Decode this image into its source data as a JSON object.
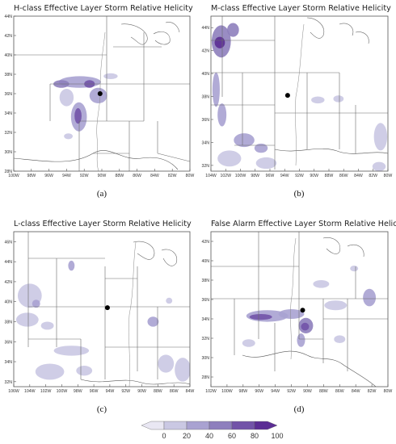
{
  "chart_data": [
    {
      "type": "heatmap",
      "title": "H-class Effective Layer Storm Relative Helicity",
      "caption": "(a)",
      "x_ticks": [
        "100W",
        "98W",
        "96W",
        "94W",
        "92W",
        "90W",
        "88W",
        "86W",
        "84W",
        "82W",
        "80W"
      ],
      "y_ticks": [
        "28N",
        "30N",
        "32N",
        "34N",
        "36N",
        "38N",
        "40N",
        "42N",
        "44N"
      ],
      "xlim": [
        -100,
        -80
      ],
      "ylim": [
        28,
        44
      ],
      "point": {
        "lon": -90.2,
        "lat": 36.0
      },
      "contours": [
        {
          "lon": -92.5,
          "lat": 37.2,
          "rx": 2.4,
          "ry": 0.6,
          "level": 40
        },
        {
          "lon": -94.6,
          "lat": 37.0,
          "rx": 0.9,
          "ry": 0.4,
          "level": 60
        },
        {
          "lon": -91.4,
          "lat": 37.0,
          "rx": 0.6,
          "ry": 0.4,
          "level": 80
        },
        {
          "lon": -94.0,
          "lat": 35.6,
          "rx": 0.8,
          "ry": 0.9,
          "level": 20
        },
        {
          "lon": -90.4,
          "lat": 35.8,
          "rx": 1.0,
          "ry": 0.8,
          "level": 40
        },
        {
          "lon": -92.6,
          "lat": 33.6,
          "rx": 0.9,
          "ry": 1.5,
          "level": 40
        },
        {
          "lon": -92.7,
          "lat": 33.7,
          "rx": 0.4,
          "ry": 0.8,
          "level": 80
        },
        {
          "lon": -89.0,
          "lat": 37.8,
          "rx": 0.8,
          "ry": 0.3,
          "level": 20
        },
        {
          "lon": -93.8,
          "lat": 31.6,
          "rx": 0.5,
          "ry": 0.3,
          "level": 20
        }
      ]
    },
    {
      "type": "heatmap",
      "title": "M-class Effective Layer Storm Relative Helicity",
      "caption": "(b)",
      "x_ticks": [
        "104W",
        "102W",
        "100W",
        "98W",
        "96W",
        "94W",
        "92W",
        "90W",
        "88W",
        "86W",
        "84W",
        "82W",
        "80W"
      ],
      "y_ticks": [
        "32N",
        "34N",
        "36N",
        "38N",
        "40N",
        "42N",
        "44N"
      ],
      "xlim": [
        -104,
        -80
      ],
      "ylim": [
        31.5,
        45
      ],
      "point": {
        "lon": -93.6,
        "lat": 38.1
      },
      "contours": [
        {
          "lon": -102.6,
          "lat": 42.8,
          "rx": 1.3,
          "ry": 1.4,
          "level": 60
        },
        {
          "lon": -102.8,
          "lat": 42.7,
          "rx": 0.7,
          "ry": 0.5,
          "level": 100
        },
        {
          "lon": -101.0,
          "lat": 43.8,
          "rx": 0.8,
          "ry": 0.6,
          "level": 60
        },
        {
          "lon": -103.3,
          "lat": 38.6,
          "rx": 0.5,
          "ry": 1.5,
          "level": 40
        },
        {
          "lon": -102.5,
          "lat": 36.4,
          "rx": 0.6,
          "ry": 1.0,
          "level": 40
        },
        {
          "lon": -99.5,
          "lat": 34.2,
          "rx": 1.4,
          "ry": 0.6,
          "level": 40
        },
        {
          "lon": -97.2,
          "lat": 33.5,
          "rx": 0.9,
          "ry": 0.4,
          "level": 40
        },
        {
          "lon": -101.5,
          "lat": 32.6,
          "rx": 1.6,
          "ry": 0.7,
          "level": 20
        },
        {
          "lon": -96.5,
          "lat": 32.2,
          "rx": 1.4,
          "ry": 0.5,
          "level": 20
        },
        {
          "lon": -89.5,
          "lat": 37.7,
          "rx": 0.9,
          "ry": 0.3,
          "level": 20
        },
        {
          "lon": -86.7,
          "lat": 37.8,
          "rx": 0.7,
          "ry": 0.3,
          "level": 20
        },
        {
          "lon": -81.0,
          "lat": 34.5,
          "rx": 0.9,
          "ry": 1.2,
          "level": 20
        },
        {
          "lon": -81.2,
          "lat": 31.9,
          "rx": 0.9,
          "ry": 0.4,
          "level": 20
        }
      ]
    },
    {
      "type": "heatmap",
      "title": "L-class Effective Layer Storm Relative Helicity",
      "caption": "(c)",
      "x_ticks": [
        "106W",
        "104W",
        "102W",
        "100W",
        "98W",
        "96W",
        "94W",
        "92W",
        "90W",
        "88W",
        "86W",
        "84W"
      ],
      "y_ticks": [
        "32N",
        "34N",
        "36N",
        "38N",
        "40N",
        "42N",
        "44N",
        "46N"
      ],
      "xlim": [
        -106,
        -84
      ],
      "ylim": [
        31.5,
        47
      ],
      "point": {
        "lon": -94.3,
        "lat": 39.4
      },
      "contours": [
        {
          "lon": -104.0,
          "lat": 40.6,
          "rx": 1.5,
          "ry": 1.2,
          "level": 20
        },
        {
          "lon": -103.2,
          "lat": 39.8,
          "rx": 0.5,
          "ry": 0.4,
          "level": 40
        },
        {
          "lon": -104.3,
          "lat": 38.2,
          "rx": 1.4,
          "ry": 0.7,
          "level": 20
        },
        {
          "lon": -98.8,
          "lat": 43.6,
          "rx": 0.4,
          "ry": 0.5,
          "level": 40
        },
        {
          "lon": -101.8,
          "lat": 37.6,
          "rx": 0.8,
          "ry": 0.4,
          "level": 20
        },
        {
          "lon": -98.8,
          "lat": 35.1,
          "rx": 2.2,
          "ry": 0.5,
          "level": 20
        },
        {
          "lon": -101.5,
          "lat": 33.0,
          "rx": 1.8,
          "ry": 0.8,
          "level": 20
        },
        {
          "lon": -97.2,
          "lat": 33.1,
          "rx": 1.0,
          "ry": 0.5,
          "level": 20
        },
        {
          "lon": -88.6,
          "lat": 38.0,
          "rx": 0.7,
          "ry": 0.5,
          "level": 40
        },
        {
          "lon": -87.0,
          "lat": 33.8,
          "rx": 1.0,
          "ry": 0.9,
          "level": 20
        },
        {
          "lon": -84.9,
          "lat": 33.2,
          "rx": 1.0,
          "ry": 1.2,
          "level": 20
        },
        {
          "lon": -86.6,
          "lat": 40.1,
          "rx": 0.4,
          "ry": 0.3,
          "level": 20
        }
      ]
    },
    {
      "type": "heatmap",
      "title": "False Alarm Effective Layer Storm Relative Helicity",
      "caption": "(d)",
      "x_ticks": [
        "102W",
        "100W",
        "98W",
        "96W",
        "94W",
        "92W",
        "90W",
        "88W",
        "86W",
        "84W",
        "82W",
        "80W"
      ],
      "y_ticks": [
        "28N",
        "30N",
        "32N",
        "34N",
        "36N",
        "38N",
        "40N",
        "42N"
      ],
      "xlim": [
        -102,
        -80
      ],
      "ylim": [
        27,
        43
      ],
      "point": {
        "lon": -90.6,
        "lat": 34.9
      },
      "contours": [
        {
          "lon": -95.0,
          "lat": 34.3,
          "rx": 2.6,
          "ry": 0.6,
          "level": 40
        },
        {
          "lon": -95.8,
          "lat": 34.2,
          "rx": 1.4,
          "ry": 0.3,
          "level": 80
        },
        {
          "lon": -92.0,
          "lat": 34.5,
          "rx": 1.6,
          "ry": 0.5,
          "level": 40
        },
        {
          "lon": -90.2,
          "lat": 33.3,
          "rx": 0.9,
          "ry": 0.8,
          "level": 60
        },
        {
          "lon": -90.3,
          "lat": 33.2,
          "rx": 0.5,
          "ry": 0.4,
          "level": 80
        },
        {
          "lon": -90.8,
          "lat": 31.8,
          "rx": 0.5,
          "ry": 0.7,
          "level": 40
        },
        {
          "lon": -82.3,
          "lat": 36.2,
          "rx": 0.8,
          "ry": 0.9,
          "level": 40
        },
        {
          "lon": -86.5,
          "lat": 35.4,
          "rx": 1.4,
          "ry": 0.5,
          "level": 20
        },
        {
          "lon": -88.3,
          "lat": 37.6,
          "rx": 1.0,
          "ry": 0.4,
          "level": 20
        },
        {
          "lon": -97.3,
          "lat": 31.5,
          "rx": 0.8,
          "ry": 0.4,
          "level": 20
        },
        {
          "lon": -86.0,
          "lat": 31.9,
          "rx": 0.7,
          "ry": 0.4,
          "level": 20
        },
        {
          "lon": -84.2,
          "lat": 39.2,
          "rx": 0.5,
          "ry": 0.3,
          "level": 20
        }
      ]
    }
  ],
  "colorbar": {
    "ticks": [
      "0",
      "20",
      "40",
      "60",
      "80",
      "100"
    ],
    "colors": [
      "#e9e7f3",
      "#cac8e3",
      "#a9a2d1",
      "#8e7fbd",
      "#7253a8",
      "#5b2d94"
    ]
  }
}
